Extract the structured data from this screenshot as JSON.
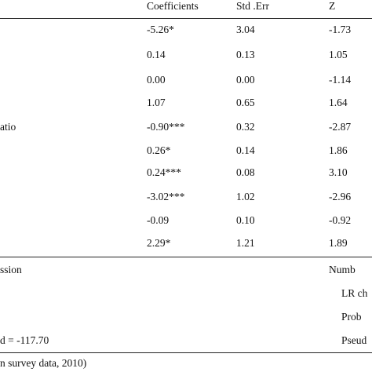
{
  "table": {
    "headers": [
      "Coefficients",
      "Std .Err",
      "Z"
    ],
    "rows": [
      {
        "label": "",
        "coef": "-5.26*",
        "se": "3.04",
        "z": "-1.73"
      },
      {
        "label": "",
        "coef": "0.14",
        "se": "0.13",
        "z": "1.05"
      },
      {
        "label": "",
        "coef": "0.00",
        "se": "0.00",
        "z": "-1.14"
      },
      {
        "label": "",
        "coef": "1.07",
        "se": "0.65",
        "z": "1.64"
      },
      {
        "label": "atio",
        "coef": "-0.90***",
        "se": "0.32",
        "z": "-2.87"
      },
      {
        "label": "",
        "coef": "0.26*",
        "se": "0.14",
        "z": "1.86"
      },
      {
        "label": "",
        "coef": "0.24***",
        "se": "0.08",
        "z": "3.10"
      },
      {
        "label": "",
        "coef": "-3.02***",
        "se": "1.02",
        "z": "-2.96"
      },
      {
        "label": "",
        "coef": "-0.09",
        "se": "0.10",
        "z": "-0.92"
      },
      {
        "label": "",
        "coef": "2.29*",
        "se": "1.21",
        "z": "1.89"
      }
    ]
  },
  "footer": {
    "left": [
      "ssion",
      "",
      "",
      "d = -117.70"
    ],
    "right": [
      "Numb",
      "LR ch",
      "Prob",
      "Pseud"
    ]
  },
  "source_note": "n survey data, 2010)"
}
